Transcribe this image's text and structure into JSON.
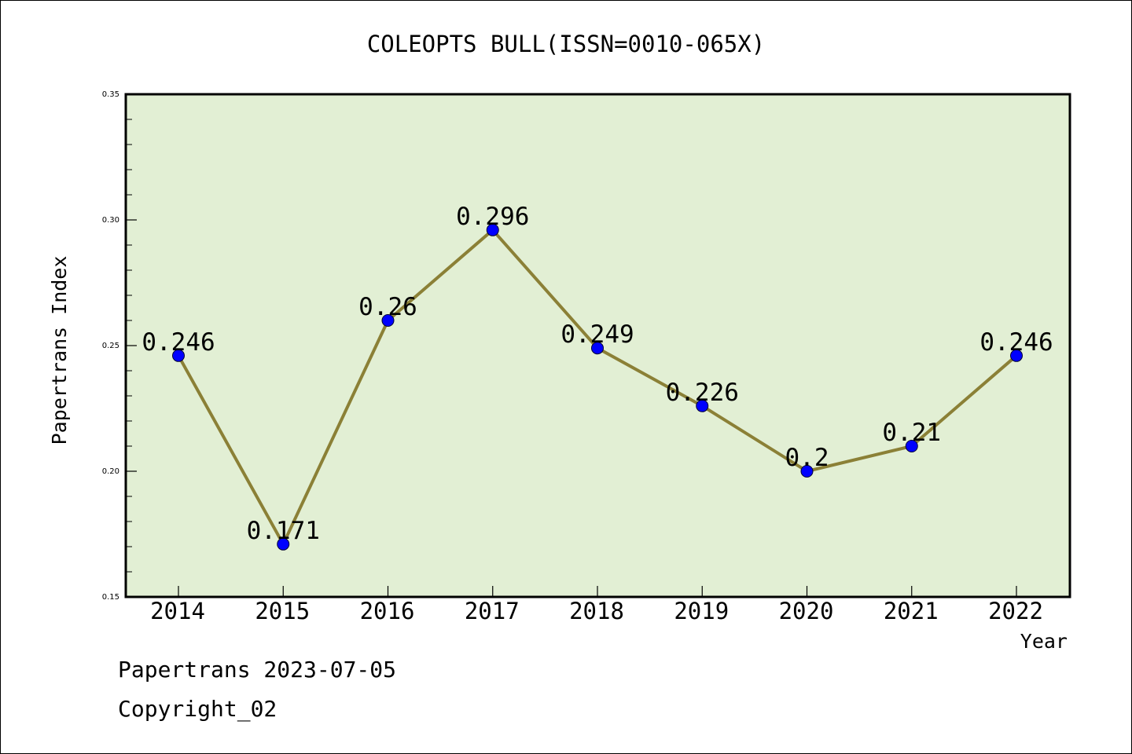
{
  "chart_data": {
    "type": "line",
    "title": "COLEOPTS BULL(ISSN=0010-065X)",
    "xlabel": "Year",
    "ylabel": "Papertrans Index",
    "categories": [
      "2014",
      "2015",
      "2016",
      "2017",
      "2018",
      "2019",
      "2020",
      "2021",
      "2022"
    ],
    "values": [
      0.246,
      0.171,
      0.26,
      0.296,
      0.249,
      0.226,
      0.2,
      0.21,
      0.246
    ],
    "data_labels": [
      "0.246",
      "0.171",
      "0.26",
      "0.296",
      "0.249",
      "0.226",
      "0.2",
      "0.21",
      "0.246"
    ],
    "ylim": [
      0.15,
      0.35
    ],
    "yticks": [
      "0.15",
      "0.20",
      "0.25",
      "0.30",
      "0.35"
    ],
    "grid": false,
    "legend": "none",
    "colors": {
      "plot_background": "#e2efd4",
      "line": "#8b8036",
      "marker": "#0000ff"
    }
  },
  "footer": {
    "line1": "Papertrans 2023-07-05",
    "line2": "Copyright_02"
  }
}
